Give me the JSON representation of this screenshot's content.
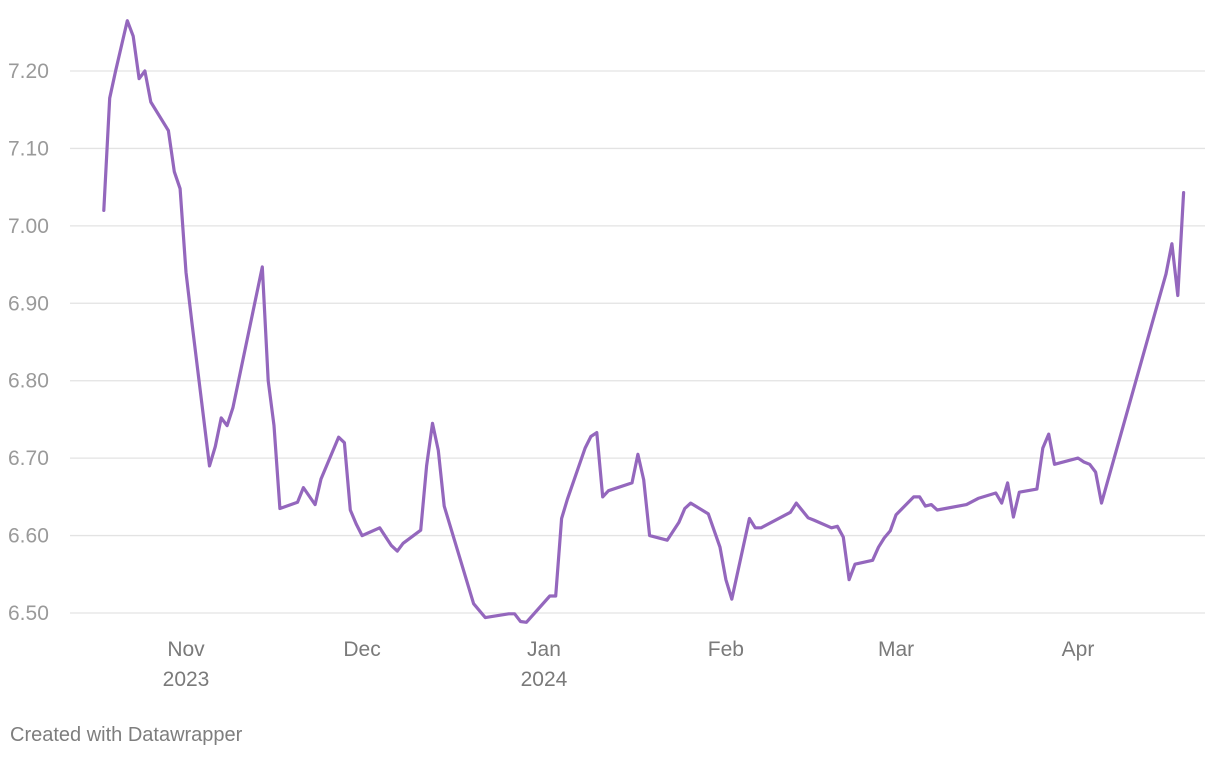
{
  "credit": "Created with Datawrapper",
  "chart_data": {
    "type": "line",
    "title": "",
    "xlabel": "",
    "ylabel": "",
    "ylim": [
      6.48,
      7.28
    ],
    "y_ticks": [
      "6.50",
      "6.60",
      "6.70",
      "6.80",
      "6.90",
      "7.00",
      "7.10",
      "7.20"
    ],
    "x_ticks": [
      {
        "date": "2023-11-01",
        "month": "Nov",
        "year": "2023"
      },
      {
        "date": "2023-12-01",
        "month": "Dec",
        "year": ""
      },
      {
        "date": "2024-01-01",
        "month": "Jan",
        "year": "2024"
      },
      {
        "date": "2024-02-01",
        "month": "Feb",
        "year": ""
      },
      {
        "date": "2024-03-01",
        "month": "Mar",
        "year": ""
      },
      {
        "date": "2024-04-01",
        "month": "Apr",
        "year": ""
      }
    ],
    "grid": true,
    "color": "#9467bd",
    "series": [
      {
        "points": [
          [
            "2023-10-18",
            7.02
          ],
          [
            "2023-10-19",
            7.165
          ],
          [
            "2023-10-20",
            7.2
          ],
          [
            "2023-10-22",
            7.265
          ],
          [
            "2023-10-23",
            7.245
          ],
          [
            "2023-10-24",
            7.19
          ],
          [
            "2023-10-25",
            7.2
          ],
          [
            "2023-10-26",
            7.16
          ],
          [
            "2023-10-29",
            7.123
          ],
          [
            "2023-10-30",
            7.07
          ],
          [
            "2023-10-31",
            7.048
          ],
          [
            "2023-11-01",
            6.94
          ],
          [
            "2023-11-02",
            6.875
          ],
          [
            "2023-11-05",
            6.69
          ],
          [
            "2023-11-06",
            6.715
          ],
          [
            "2023-11-07",
            6.752
          ],
          [
            "2023-11-08",
            6.742
          ],
          [
            "2023-11-09",
            6.765
          ],
          [
            "2023-11-14",
            6.947
          ],
          [
            "2023-11-15",
            6.8
          ],
          [
            "2023-11-16",
            6.742
          ],
          [
            "2023-11-17",
            6.635
          ],
          [
            "2023-11-20",
            6.643
          ],
          [
            "2023-11-21",
            6.662
          ],
          [
            "2023-11-23",
            6.64
          ],
          [
            "2023-11-24",
            6.673
          ],
          [
            "2023-11-27",
            6.727
          ],
          [
            "2023-11-28",
            6.72
          ],
          [
            "2023-11-29",
            6.633
          ],
          [
            "2023-11-30",
            6.615
          ],
          [
            "2023-12-01",
            6.6
          ],
          [
            "2023-12-04",
            6.61
          ],
          [
            "2023-12-06",
            6.587
          ],
          [
            "2023-12-07",
            6.58
          ],
          [
            "2023-12-08",
            6.59
          ],
          [
            "2023-12-11",
            6.607
          ],
          [
            "2023-12-12",
            6.69
          ],
          [
            "2023-12-13",
            6.745
          ],
          [
            "2023-12-14",
            6.71
          ],
          [
            "2023-12-15",
            6.638
          ],
          [
            "2023-12-20",
            6.512
          ],
          [
            "2023-12-22",
            6.494
          ],
          [
            "2023-12-26",
            6.499
          ],
          [
            "2023-12-27",
            6.499
          ],
          [
            "2023-12-28",
            6.489
          ],
          [
            "2023-12-29",
            6.488
          ],
          [
            "2024-01-02",
            6.522
          ],
          [
            "2024-01-03",
            6.522
          ],
          [
            "2024-01-04",
            6.622
          ],
          [
            "2024-01-05",
            6.647
          ],
          [
            "2024-01-08",
            6.713
          ],
          [
            "2024-01-09",
            6.728
          ],
          [
            "2024-01-10",
            6.733
          ],
          [
            "2024-01-11",
            6.65
          ],
          [
            "2024-01-12",
            6.658
          ],
          [
            "2024-01-16",
            6.668
          ],
          [
            "2024-01-17",
            6.705
          ],
          [
            "2024-01-18",
            6.672
          ],
          [
            "2024-01-19",
            6.6
          ],
          [
            "2024-01-22",
            6.594
          ],
          [
            "2024-01-24",
            6.617
          ],
          [
            "2024-01-25",
            6.635
          ],
          [
            "2024-01-26",
            6.642
          ],
          [
            "2024-01-29",
            6.628
          ],
          [
            "2024-01-31",
            6.585
          ],
          [
            "2024-02-01",
            6.543
          ],
          [
            "2024-02-02",
            6.518
          ],
          [
            "2024-02-05",
            6.622
          ],
          [
            "2024-02-06",
            6.61
          ],
          [
            "2024-02-07",
            6.61
          ],
          [
            "2024-02-12",
            6.63
          ],
          [
            "2024-02-13",
            6.642
          ],
          [
            "2024-02-15",
            6.623
          ],
          [
            "2024-02-16",
            6.62
          ],
          [
            "2024-02-19",
            6.61
          ],
          [
            "2024-02-20",
            6.612
          ],
          [
            "2024-02-21",
            6.598
          ],
          [
            "2024-02-22",
            6.543
          ],
          [
            "2024-02-23",
            6.563
          ],
          [
            "2024-02-26",
            6.568
          ],
          [
            "2024-02-27",
            6.585
          ],
          [
            "2024-02-28",
            6.597
          ],
          [
            "2024-02-29",
            6.606
          ],
          [
            "2024-03-01",
            6.627
          ],
          [
            "2024-03-04",
            6.65
          ],
          [
            "2024-03-05",
            6.65
          ],
          [
            "2024-03-06",
            6.638
          ],
          [
            "2024-03-07",
            6.64
          ],
          [
            "2024-03-08",
            6.633
          ],
          [
            "2024-03-13",
            6.64
          ],
          [
            "2024-03-15",
            6.648
          ],
          [
            "2024-03-18",
            6.655
          ],
          [
            "2024-03-19",
            6.642
          ],
          [
            "2024-03-20",
            6.668
          ],
          [
            "2024-03-21",
            6.624
          ],
          [
            "2024-03-22",
            6.656
          ],
          [
            "2024-03-25",
            6.66
          ],
          [
            "2024-03-26",
            6.713
          ],
          [
            "2024-03-27",
            6.731
          ],
          [
            "2024-03-28",
            6.692
          ],
          [
            "2024-04-01",
            6.7
          ],
          [
            "2024-04-02",
            6.695
          ],
          [
            "2024-04-03",
            6.692
          ],
          [
            "2024-04-04",
            6.682
          ],
          [
            "2024-04-05",
            6.642
          ],
          [
            "2024-04-16",
            6.938
          ],
          [
            "2024-04-17",
            6.977
          ],
          [
            "2024-04-18",
            6.91
          ],
          [
            "2024-04-19",
            7.043
          ]
        ]
      }
    ]
  }
}
